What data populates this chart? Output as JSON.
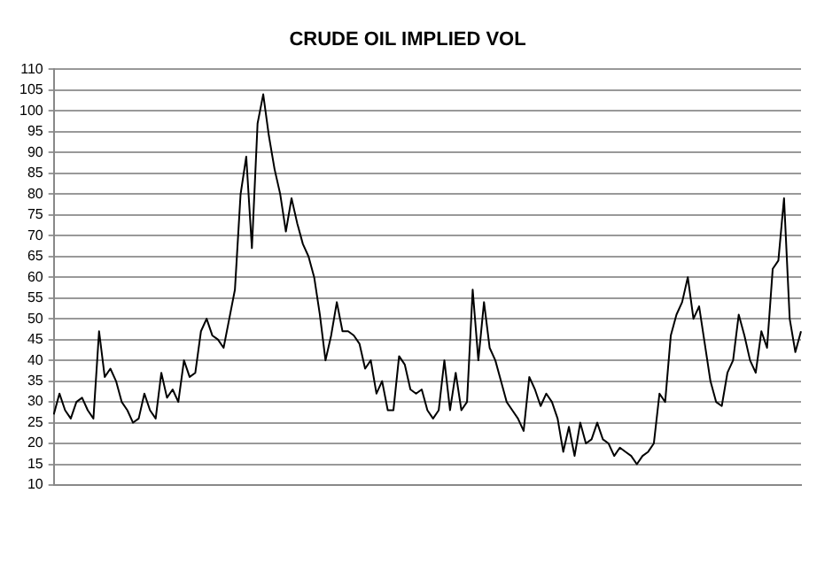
{
  "chart_data": {
    "type": "line",
    "title": "CRUDE OIL IMPLIED VOL",
    "categories": [
      null,
      null,
      null,
      null,
      null,
      null,
      null,
      null,
      null,
      null,
      null,
      null,
      null,
      null,
      null,
      null,
      null,
      null,
      null,
      null,
      null,
      null,
      null,
      null,
      null,
      null,
      null,
      null,
      null,
      null,
      null,
      null,
      null,
      null,
      null,
      null,
      null,
      null,
      null,
      null,
      null,
      null,
      null,
      null,
      null,
      null,
      null,
      null,
      null,
      null,
      null,
      null,
      null,
      null,
      null,
      null,
      null,
      null,
      null,
      null,
      null,
      null,
      null,
      null,
      null,
      null,
      null,
      null,
      null,
      null,
      null,
      null,
      null,
      null,
      null,
      null,
      null,
      null,
      null,
      null,
      null,
      null,
      null,
      null,
      null,
      null,
      null,
      null,
      null,
      null,
      null,
      null,
      null,
      null,
      null,
      null,
      null,
      null,
      null,
      null,
      null,
      null,
      null,
      null,
      null,
      null,
      null,
      null,
      null,
      null,
      null,
      null,
      null,
      null,
      null,
      null,
      null,
      null,
      null,
      null,
      null,
      null,
      null,
      null,
      null,
      null,
      null,
      null,
      null,
      null,
      null,
      null,
      null
    ],
    "series": [
      {
        "color": "#000000",
        "values": [
          27,
          32,
          28,
          26,
          30,
          31,
          28,
          26,
          47,
          36,
          38,
          35,
          30,
          28,
          25,
          26,
          32,
          28,
          26,
          37,
          31,
          33,
          30,
          40,
          36,
          37,
          47,
          50,
          46,
          45,
          43,
          50,
          57,
          80,
          89,
          67,
          97,
          104,
          94,
          86,
          80,
          71,
          79,
          73,
          68,
          65,
          60,
          51,
          40,
          46,
          54,
          47,
          47,
          46,
          44,
          38,
          40,
          32,
          35,
          28,
          28,
          41,
          39,
          33,
          32,
          33,
          28,
          26,
          28,
          40,
          28,
          37,
          28,
          30,
          57,
          40,
          54,
          43,
          40,
          35,
          30,
          28,
          26,
          23,
          36,
          33,
          29,
          32,
          30,
          26,
          18,
          24,
          17,
          25,
          20,
          21,
          25,
          21,
          20,
          17,
          19,
          18,
          17,
          15,
          17,
          18,
          20,
          32,
          30,
          46,
          51,
          54,
          60,
          50,
          53,
          44,
          35,
          30,
          29,
          37,
          40,
          51,
          46,
          40,
          37,
          47,
          43,
          62,
          64,
          79,
          50,
          42,
          47
        ]
      }
    ],
    "ylim": [
      10,
      110
    ],
    "yticks": [
      10,
      15,
      20,
      25,
      30,
      35,
      40,
      45,
      50,
      55,
      60,
      65,
      70,
      75,
      80,
      85,
      90,
      95,
      100,
      105,
      110
    ],
    "grid": "y",
    "tick_labels": "y",
    "marker": "none",
    "line_style": "solid"
  }
}
